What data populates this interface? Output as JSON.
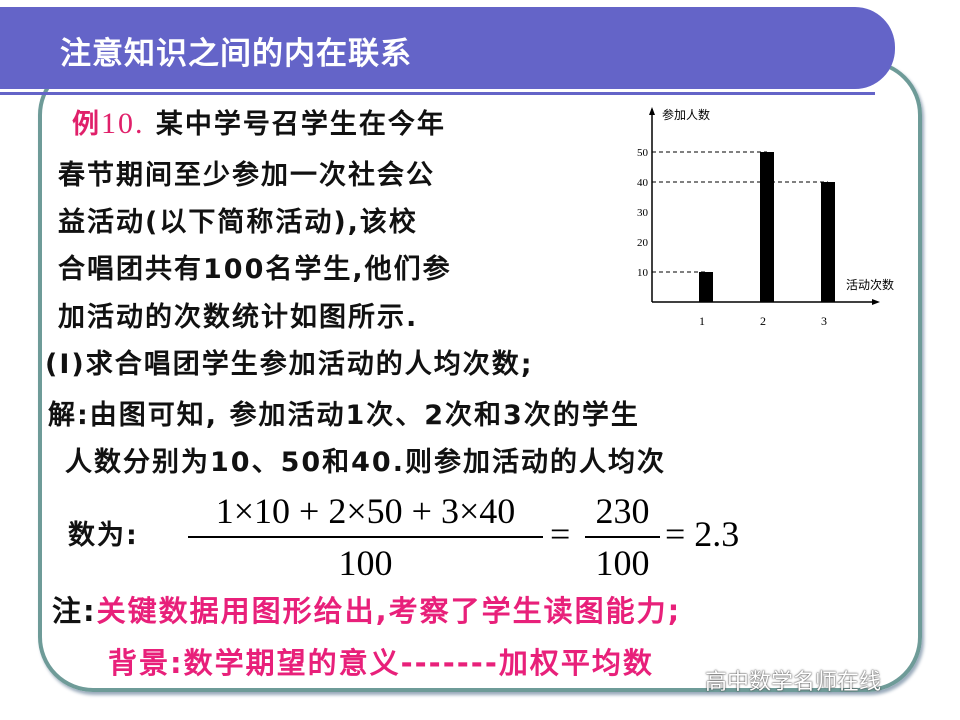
{
  "title": "注意知识之间的内在联系",
  "problem": {
    "label": "例",
    "number": "10.",
    "lines": [
      "某中学号召学生在今年",
      "春节期间至少参加一次社会公",
      "益活动(以下简称活动),该校",
      "合唱团共有100名学生,他们参",
      "加活动的次数统计如图所示."
    ]
  },
  "question": "(Ⅰ)求合唱团学生参加活动的人均次数;",
  "solution": {
    "line1": "解:由图可知, 参加活动1次、2次和3次的学生",
    "line2": "人数分别为10、50和40.则参加活动的人均次",
    "line3": "数为:",
    "numerator": "1×10 + 2×50 + 3×40",
    "denominator": "100",
    "eq1": "=",
    "numerator2": "230",
    "denominator2": "100",
    "result": "= 2.3"
  },
  "note": {
    "label": "注:",
    "text": "关键数据用图形给出,考察了学生读图能力;",
    "background": "背景:数学期望的意义-------加权平均数"
  },
  "watermark": "高中数学名师在线",
  "chart_data": {
    "type": "bar",
    "ylabel": "参加人数",
    "xlabel": "活动次数",
    "categories": [
      "1",
      "2",
      "3"
    ],
    "values": [
      10,
      50,
      40
    ],
    "yticks": [
      "10",
      "20",
      "30",
      "40",
      "50"
    ],
    "ylim": [
      0,
      60
    ],
    "reference_lines": [
      10,
      40,
      50
    ],
    "bar_color": "#000000"
  }
}
